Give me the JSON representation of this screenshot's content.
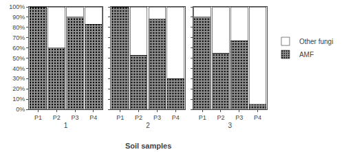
{
  "chart_data": [
    {
      "type": "bar",
      "stacked": true,
      "xlabel": "1",
      "categories": [
        "P1",
        "P2",
        "P3",
        "P4"
      ],
      "series": [
        {
          "name": "AMF",
          "color": "#909090",
          "values": [
            100,
            60,
            90,
            83
          ]
        },
        {
          "name": "Other fungi",
          "color": "#ffffff",
          "values": [
            0,
            40,
            10,
            17
          ]
        }
      ],
      "ylim": [
        0,
        100
      ],
      "yticks": [
        {
          "value": 0,
          "label": "0%"
        },
        {
          "value": 10,
          "label": "10%"
        },
        {
          "value": 20,
          "label": "20%"
        },
        {
          "value": 30,
          "label": "30%"
        },
        {
          "value": 40,
          "label": "40%"
        },
        {
          "value": 50,
          "label": "50%"
        },
        {
          "value": 60,
          "label": "60%"
        },
        {
          "value": 70,
          "label": "70%"
        },
        {
          "value": 80,
          "label": "80%"
        },
        {
          "value": 90,
          "label": "90%"
        },
        {
          "value": 100,
          "label": "100%"
        }
      ],
      "grid": false,
      "legend": "right"
    },
    {
      "type": "bar",
      "stacked": true,
      "xlabel": "2",
      "annotations": [
        "Soil samples"
      ],
      "categories": [
        "P1",
        "P2",
        "P3",
        "P4"
      ],
      "series": [
        {
          "name": "AMF",
          "color": "#909090",
          "values": [
            100,
            53,
            88,
            30
          ]
        },
        {
          "name": "Other fungi",
          "color": "#ffffff",
          "values": [
            0,
            47,
            12,
            70
          ]
        }
      ],
      "ylim": [
        0,
        100
      ],
      "yticks": [
        0,
        10,
        20,
        30,
        40,
        50,
        60,
        70,
        80,
        90,
        100
      ],
      "grid": false,
      "tick_labels": "x"
    },
    {
      "type": "bar",
      "stacked": true,
      "xlabel": "3",
      "categories": [
        "P1",
        "P2",
        "P3",
        "P4"
      ],
      "series": [
        {
          "name": "AMF",
          "color": "#909090",
          "values": [
            90,
            55,
            67,
            5
          ]
        },
        {
          "name": "Other fungi",
          "color": "#ffffff",
          "values": [
            10,
            45,
            33,
            95
          ]
        }
      ],
      "ylim": [
        0,
        100
      ],
      "yticks": [
        0,
        10,
        20,
        30,
        40,
        50,
        60,
        70,
        80,
        90,
        100
      ],
      "grid": false,
      "tick_labels": "x"
    }
  ]
}
